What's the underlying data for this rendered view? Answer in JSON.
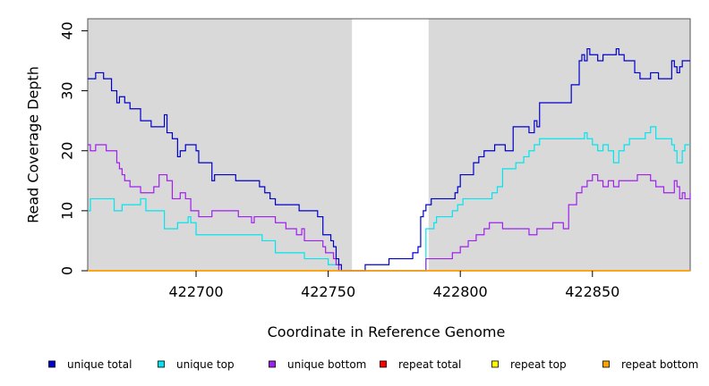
{
  "chart_data": {
    "type": "line",
    "title": "",
    "xlabel": "Coordinate in Reference Genome",
    "ylabel": "Read Coverage Depth",
    "xlim": [
      422659,
      422887
    ],
    "ylim": [
      0,
      42
    ],
    "xticks": [
      422700,
      422750,
      422800,
      422850
    ],
    "xtick_labels": [
      "422700",
      "422750",
      "422800",
      "422850"
    ],
    "yticks": [
      0,
      10,
      20,
      30,
      40
    ],
    "ytick_labels": [
      "0",
      "10",
      "20",
      "30",
      "40"
    ],
    "shaded_regions": [
      [
        422659,
        422759
      ],
      [
        422788,
        422887
      ]
    ],
    "grid": false,
    "legend_position": "bottom",
    "series": [
      {
        "name": "unique total",
        "color": "#0000cd",
        "x": [
          422659,
          422662,
          422665,
          422668,
          422670,
          422671,
          422673,
          422675,
          422679,
          422683,
          422688,
          422689,
          422691,
          422693,
          422694,
          422696,
          422700,
          422701,
          422706,
          422707,
          422715,
          422724,
          422726,
          422728,
          422730,
          422739,
          422746,
          422748,
          422751,
          422752,
          422753,
          422754,
          422755,
          422759,
          422764,
          422773,
          422782,
          422784,
          422785,
          422786,
          422787,
          422789,
          422798,
          422799,
          422800,
          422805,
          422807,
          422809,
          422813,
          422817,
          422820,
          422826,
          422828,
          422829,
          422830,
          422842,
          422845,
          422846,
          422847,
          422848,
          422849,
          422852,
          422854,
          422859,
          422860,
          422862,
          422866,
          422868,
          422872,
          422875,
          422880,
          422881,
          422882,
          422883,
          422884,
          422885,
          422886,
          422887
        ],
        "y": [
          32,
          33,
          32,
          30,
          28,
          29,
          28,
          27,
          25,
          24,
          26,
          23,
          22,
          19,
          20,
          21,
          20,
          18,
          15,
          16,
          15,
          14,
          13,
          12,
          11,
          10,
          9,
          6,
          5,
          4,
          2,
          1,
          0,
          0,
          1,
          2,
          3,
          4,
          9,
          10,
          11,
          12,
          13,
          14,
          16,
          18,
          19,
          20,
          21,
          20,
          24,
          23,
          25,
          24,
          28,
          31,
          35,
          36,
          35,
          37,
          36,
          35,
          36,
          37,
          36,
          35,
          33,
          32,
          33,
          32,
          35,
          34,
          33,
          34,
          35,
          35,
          35,
          35
        ]
      },
      {
        "name": "unique top",
        "color": "#00e5ee",
        "x": [
          422659,
          422660,
          422669,
          422672,
          422679,
          422681,
          422688,
          422693,
          422697,
          422698,
          422700,
          422725,
          422730,
          422741,
          422750,
          422754,
          422755,
          422759,
          422787,
          422790,
          422791,
          422797,
          422799,
          422801,
          422812,
          422814,
          422816,
          422821,
          422824,
          422826,
          422828,
          422830,
          422847,
          422848,
          422850,
          422852,
          422854,
          422856,
          422858,
          422860,
          422862,
          422864,
          422870,
          422872,
          422874,
          422880,
          422881,
          422882,
          422884,
          422885,
          422887
        ],
        "y": [
          10,
          12,
          10,
          11,
          12,
          10,
          7,
          8,
          9,
          8,
          6,
          5,
          3,
          2,
          1,
          0,
          0,
          0,
          7,
          8,
          9,
          10,
          11,
          12,
          13,
          14,
          17,
          18,
          19,
          20,
          21,
          22,
          23,
          22,
          21,
          20,
          21,
          20,
          18,
          20,
          21,
          22,
          23,
          24,
          22,
          21,
          20,
          18,
          20,
          21,
          21
        ]
      },
      {
        "name": "unique bottom",
        "color": "#a020f0",
        "x": [
          422659,
          422660,
          422662,
          422666,
          422670,
          422671,
          422672,
          422673,
          422675,
          422679,
          422684,
          422686,
          422689,
          422691,
          422694,
          422696,
          422698,
          422701,
          422706,
          422716,
          422721,
          422722,
          422730,
          422734,
          422738,
          422740,
          422741,
          422748,
          422749,
          422752,
          422753,
          422754,
          422755,
          422787,
          422797,
          422800,
          422803,
          422806,
          422809,
          422811,
          422816,
          422826,
          422829,
          422835,
          422839,
          422841,
          422844,
          422846,
          422848,
          422850,
          422852,
          422854,
          422856,
          422858,
          422860,
          422867,
          422872,
          422874,
          422877,
          422881,
          422882,
          422883,
          422884,
          422885,
          422887
        ],
        "y": [
          21,
          20,
          21,
          20,
          18,
          17,
          16,
          15,
          14,
          13,
          14,
          16,
          15,
          12,
          13,
          12,
          10,
          9,
          10,
          9,
          8,
          9,
          8,
          7,
          6,
          7,
          5,
          4,
          3,
          2,
          1,
          0,
          0,
          2,
          3,
          4,
          5,
          6,
          7,
          8,
          7,
          6,
          7,
          8,
          7,
          11,
          13,
          14,
          15,
          16,
          15,
          14,
          15,
          14,
          15,
          16,
          15,
          14,
          13,
          15,
          14,
          12,
          13,
          12,
          13
        ]
      },
      {
        "name": "repeat total",
        "color": "#ff0000",
        "x": [
          422659,
          422887
        ],
        "y": [
          0,
          0
        ]
      },
      {
        "name": "repeat top",
        "color": "#ffff00",
        "x": [
          422659,
          422887
        ],
        "y": [
          0,
          0
        ]
      },
      {
        "name": "repeat bottom",
        "color": "#ffa500",
        "x": [
          422659,
          422887
        ],
        "y": [
          0,
          0
        ]
      }
    ]
  }
}
